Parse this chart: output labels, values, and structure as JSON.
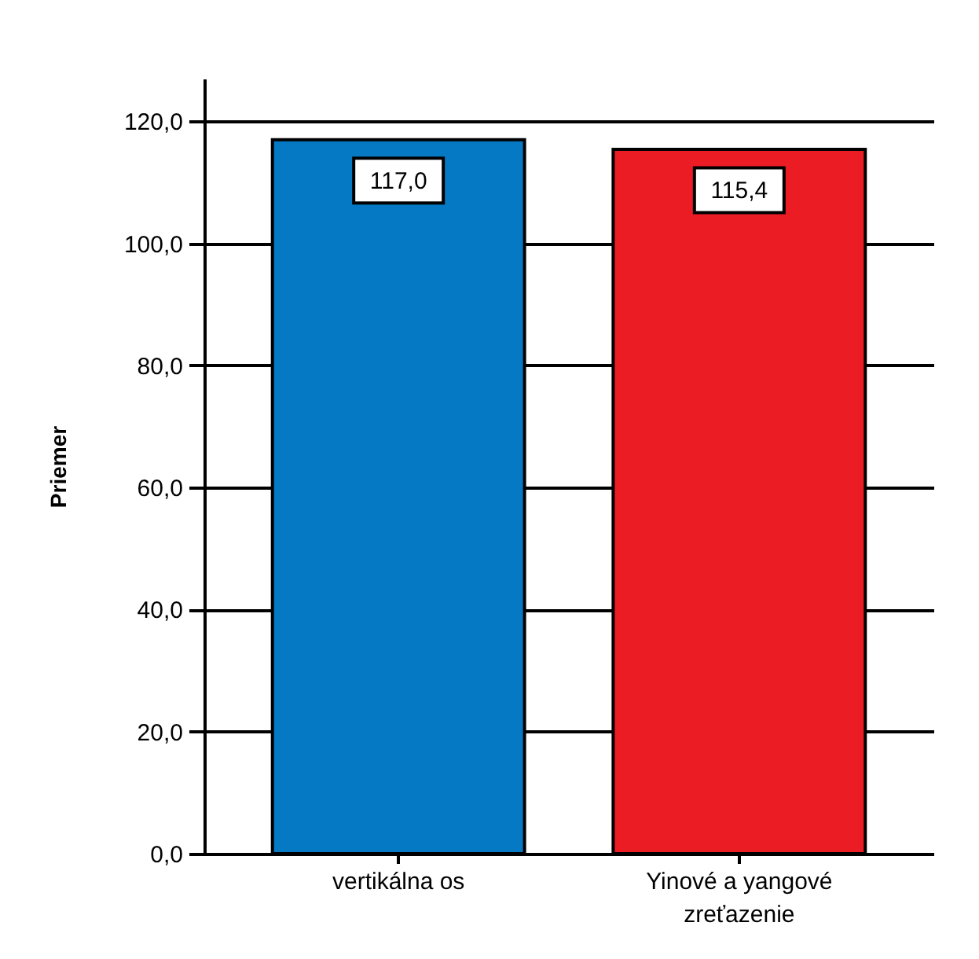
{
  "chart_data": {
    "type": "bar",
    "ylabel": "Priemer",
    "categories": [
      "vertikálna os",
      "Yinové a yangové zreťazenie"
    ],
    "values": [
      117.0,
      115.4
    ],
    "colors": [
      "#0579c3",
      "#ec1c24"
    ],
    "value_labels": [
      "117,0",
      "115,4"
    ],
    "ylim": [
      0,
      127
    ],
    "yticks": [
      {
        "value": 0,
        "label": "0,0"
      },
      {
        "value": 20,
        "label": "20,0"
      },
      {
        "value": 40,
        "label": "40,0"
      },
      {
        "value": 60,
        "label": "60,0"
      },
      {
        "value": 80,
        "label": "80,0"
      },
      {
        "value": 100,
        "label": "100,0"
      },
      {
        "value": 120,
        "label": "120,0"
      }
    ],
    "grid": "y"
  }
}
